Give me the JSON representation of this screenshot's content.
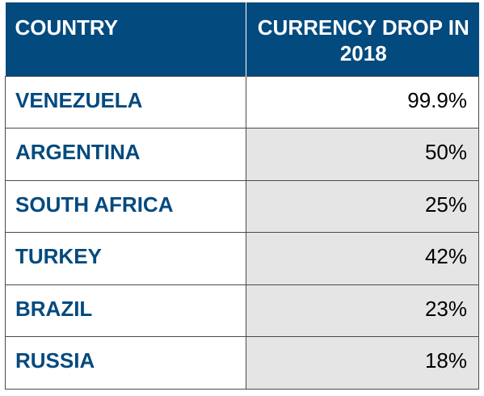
{
  "chart_data": {
    "type": "table",
    "columns": [
      "COUNTRY",
      "CURRENCY DROP IN 2018"
    ],
    "categories": [
      "VENEZUELA",
      "ARGENTINA",
      "SOUTH AFRICA",
      "TURKEY",
      "BRAZIL",
      "RUSSIA"
    ],
    "values": [
      99.9,
      50,
      25,
      42,
      23,
      18
    ],
    "value_labels": [
      "99.9%",
      "50%",
      "25%",
      "42%",
      "23%",
      "18%"
    ],
    "header_color": "#034A7E",
    "country_text_color": "#034A7E",
    "value_cell_shade": "#E5E5E5"
  }
}
